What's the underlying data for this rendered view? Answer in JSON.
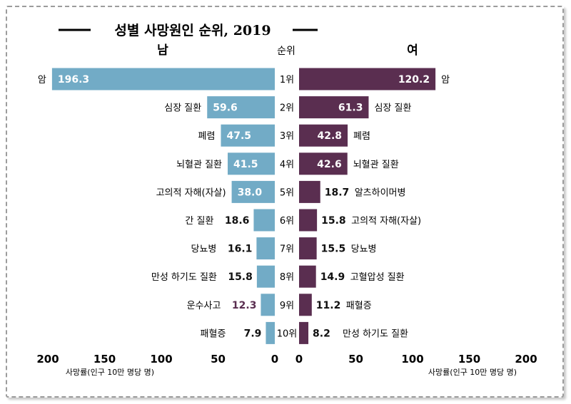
{
  "chart_data": {
    "type": "bar",
    "layout": "back-to-back horizontal bar",
    "title": "성별 사망원인 순위, 2019",
    "rank_header": "순위",
    "ranks": [
      "1위",
      "2위",
      "3위",
      "4위",
      "5위",
      "6위",
      "7위",
      "8위",
      "9위",
      "10위"
    ],
    "xlabel": "사망률(인구 10만 명당 명)",
    "xlim": [
      0,
      200
    ],
    "xticks": [
      200,
      150,
      100,
      50,
      0
    ],
    "grid": false,
    "legend": "none",
    "series": [
      {
        "name": "남",
        "color": "#72abc6",
        "categories": [
          "암",
          "심장 질환",
          "폐렴",
          "뇌혈관 질환",
          "고의적 자해(자살)",
          "간 질환",
          "당뇨병",
          "만성 하기도 질환",
          "운수사고",
          "패혈증"
        ],
        "values": [
          196.3,
          59.6,
          47.5,
          41.5,
          38.0,
          18.6,
          16.1,
          15.8,
          12.3,
          7.9
        ],
        "value_labels": [
          "196.3",
          "59.6",
          "47.5",
          "41.5",
          "38.0",
          "18.6",
          "16.1",
          "15.8",
          "12.3",
          "7.9"
        ]
      },
      {
        "name": "여",
        "color": "#5a2e50",
        "categories": [
          "암",
          "심장 질환",
          "폐렴",
          "뇌혈관 질환",
          "알츠하이머병",
          "고의적 자해(자살)",
          "당뇨병",
          "고혈압성 질환",
          "패혈증",
          "만성 하기도 질환"
        ],
        "values": [
          120.2,
          61.3,
          42.8,
          42.6,
          18.7,
          15.8,
          15.5,
          14.9,
          11.2,
          8.2
        ],
        "value_labels": [
          "120.2",
          "61.3",
          "42.8",
          "42.6",
          "18.7",
          "15.8",
          "15.5",
          "14.9",
          "11.2",
          "8.2"
        ]
      }
    ]
  }
}
